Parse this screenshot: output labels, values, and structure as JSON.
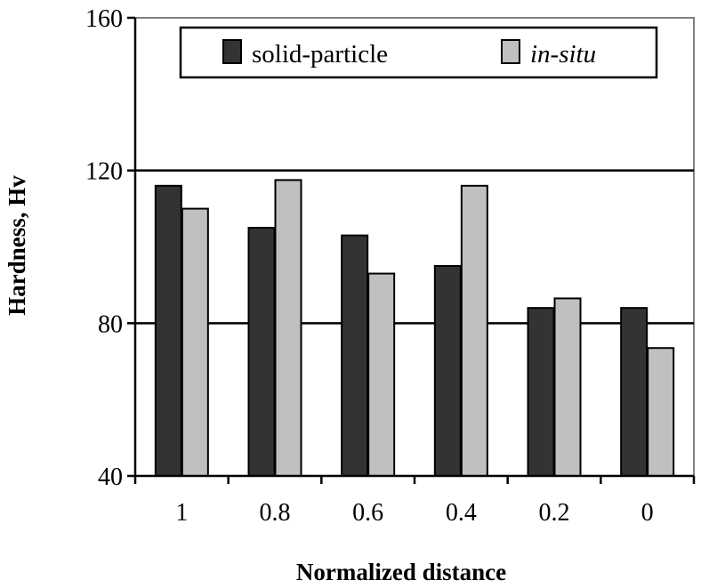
{
  "chart_data": {
    "type": "bar",
    "xlabel": "Normalized distance",
    "ylabel": "Hardness, Hv",
    "ylim": [
      40,
      160
    ],
    "yticks": [
      40,
      80,
      120,
      160
    ],
    "gridlines": [
      80,
      120
    ],
    "categories": [
      "1",
      "0.8",
      "0.6",
      "0.4",
      "0.2",
      "0"
    ],
    "series": [
      {
        "name": "solid-particle",
        "color": "#333333",
        "values": [
          116,
          105,
          103,
          95,
          84,
          84
        ]
      },
      {
        "name": "in-situ",
        "color": "#c0c0c0",
        "values": [
          110,
          117.5,
          93,
          116,
          86.5,
          73.5
        ]
      }
    ],
    "legend": {
      "position": "top",
      "italic": [
        "in-situ"
      ]
    },
    "grid": true
  }
}
